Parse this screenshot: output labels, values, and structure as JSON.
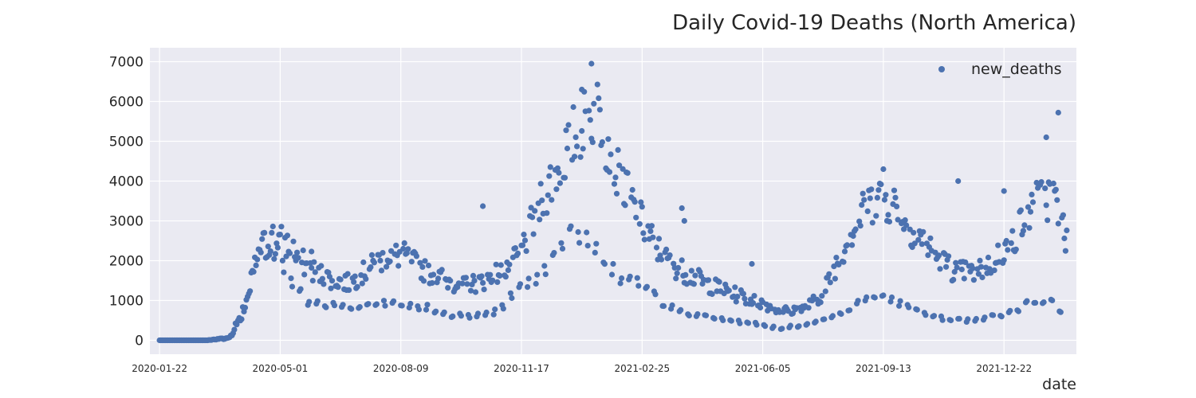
{
  "chart_data": {
    "type": "scatter",
    "title": "Daily Covid-19 Deaths (North America)",
    "xlabel": "date",
    "ylabel": "",
    "x_start": "2020-01-22",
    "x_end": "2022-02-12",
    "xlim": [
      "2020-01-14",
      "2022-02-20"
    ],
    "ylim": [
      -350,
      7350
    ],
    "x_ticks": [
      "2020-01-22",
      "2020-05-01",
      "2020-08-09",
      "2020-11-17",
      "2021-02-25",
      "2021-06-05",
      "2021-09-13",
      "2021-12-22"
    ],
    "y_ticks": [
      0,
      1000,
      2000,
      3000,
      4000,
      5000,
      6000,
      7000
    ],
    "grid": true,
    "legend_position": "top-right",
    "colors": {
      "marker": "#4c72b0",
      "plot_bg": "#eaeaf2",
      "grid": "#ffffff"
    },
    "series": [
      {
        "name": "new_deaths",
        "anchors": [
          [
            "2020-01-22",
            0,
            0
          ],
          [
            "2020-02-29",
            0,
            0
          ],
          [
            "2020-03-20",
            70,
            40
          ],
          [
            "2020-04-01",
            800,
            600
          ],
          [
            "2020-04-14",
            2350,
            2250
          ],
          [
            "2020-04-27",
            2700,
            2150
          ],
          [
            "2020-05-10",
            2350,
            1500
          ],
          [
            "2020-05-24",
            1850,
            950
          ],
          [
            "2020-06-10",
            1600,
            900
          ],
          [
            "2020-06-28",
            1450,
            850
          ],
          [
            "2020-07-12",
            1800,
            950
          ],
          [
            "2020-07-30",
            2200,
            950
          ],
          [
            "2020-08-12",
            2150,
            850
          ],
          [
            "2020-08-30",
            1750,
            850
          ],
          [
            "2020-09-15",
            1550,
            650
          ],
          [
            "2020-10-01",
            1400,
            600
          ],
          [
            "2020-10-15",
            1500,
            650
          ],
          [
            "2020-10-30",
            1750,
            750
          ],
          [
            "2020-11-14",
            2100,
            1300
          ],
          [
            "2020-11-30",
            3300,
            1500
          ],
          [
            "2020-12-15",
            4300,
            2200
          ],
          [
            "2020-12-30",
            5200,
            2700
          ],
          [
            "2021-01-12",
            5700,
            2600
          ],
          [
            "2021-01-20",
            5900,
            2300
          ],
          [
            "2021-02-05",
            4200,
            1600
          ],
          [
            "2021-02-25",
            3000,
            1450
          ],
          [
            "2021-03-15",
            2100,
            900
          ],
          [
            "2021-04-01",
            1750,
            700
          ],
          [
            "2021-04-20",
            1450,
            600
          ],
          [
            "2021-05-10",
            1200,
            500
          ],
          [
            "2021-06-01",
            1000,
            400
          ],
          [
            "2021-06-20",
            750,
            300
          ],
          [
            "2021-07-10",
            800,
            400
          ],
          [
            "2021-07-25",
            1200,
            500
          ],
          [
            "2021-08-10",
            2300,
            700
          ],
          [
            "2021-08-25",
            3200,
            1000
          ],
          [
            "2021-09-08",
            3700,
            1200
          ],
          [
            "2021-09-22",
            3500,
            1000
          ],
          [
            "2021-10-08",
            2800,
            800
          ],
          [
            "2021-10-25",
            2200,
            600
          ],
          [
            "2021-11-10",
            1800,
            500
          ],
          [
            "2021-11-28",
            1700,
            500
          ],
          [
            "2021-12-12",
            2000,
            600
          ],
          [
            "2021-12-28",
            2500,
            700
          ],
          [
            "2022-01-15",
            3500,
            1000
          ],
          [
            "2022-02-01",
            3700,
            1000
          ],
          [
            "2022-02-12",
            2500,
            550
          ]
        ],
        "notable_points": [
          [
            "2021-01-14",
            6950
          ],
          [
            "2021-01-06",
            6300
          ],
          [
            "2020-10-16",
            3370
          ],
          [
            "2021-09-13",
            4300
          ],
          [
            "2021-11-14",
            4000
          ],
          [
            "2021-12-22",
            3750
          ],
          [
            "2022-02-05",
            5720
          ],
          [
            "2022-01-26",
            5100
          ],
          [
            "2021-05-27",
            1920
          ],
          [
            "2021-03-30",
            3320
          ],
          [
            "2021-04-01",
            3000
          ],
          [
            "2020-05-27",
            2230
          ]
        ]
      }
    ]
  }
}
